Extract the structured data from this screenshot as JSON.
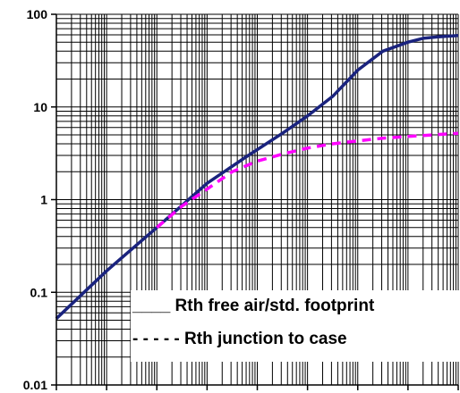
{
  "chart_data": {
    "type": "line",
    "title": "",
    "xlabel": "",
    "ylabel": "",
    "xscale": "log",
    "xdecades": 8,
    "yscale": "log",
    "ylim": [
      0.01,
      100
    ],
    "y_tick_labels": [
      "100",
      "10",
      "1",
      "0.1",
      "0.01"
    ],
    "grid": true,
    "legend_position": "bottom-right",
    "series": [
      {
        "name": "Rth free air/std. footprint",
        "legend_label": "____  Rth free air/std. footprint",
        "style": "solid",
        "color": "#1a237e",
        "x_decade": [
          0.0,
          1.0,
          2.0,
          3.0,
          3.78,
          4.5,
          5.0,
          5.5,
          6.0,
          6.5,
          7.0,
          7.3,
          7.6,
          7.8,
          8.0
        ],
        "y": [
          0.052,
          0.17,
          0.5,
          1.5,
          2.9,
          5.2,
          8.0,
          13.0,
          25.0,
          40.0,
          50.0,
          55.0,
          57.0,
          58.0,
          59.0
        ]
      },
      {
        "name": "Rth junction to case",
        "legend_label": "- - - - -  Rth junction to case",
        "style": "dashed",
        "color": "#ff00ff",
        "x_decade": [
          2.0,
          2.5,
          3.0,
          3.5,
          4.0,
          4.5,
          5.0,
          5.5,
          6.0,
          6.5,
          7.0,
          7.5,
          8.0
        ],
        "y": [
          0.5,
          0.85,
          1.3,
          2.0,
          2.6,
          3.1,
          3.6,
          4.0,
          4.3,
          4.6,
          4.8,
          5.0,
          5.2
        ]
      }
    ]
  }
}
